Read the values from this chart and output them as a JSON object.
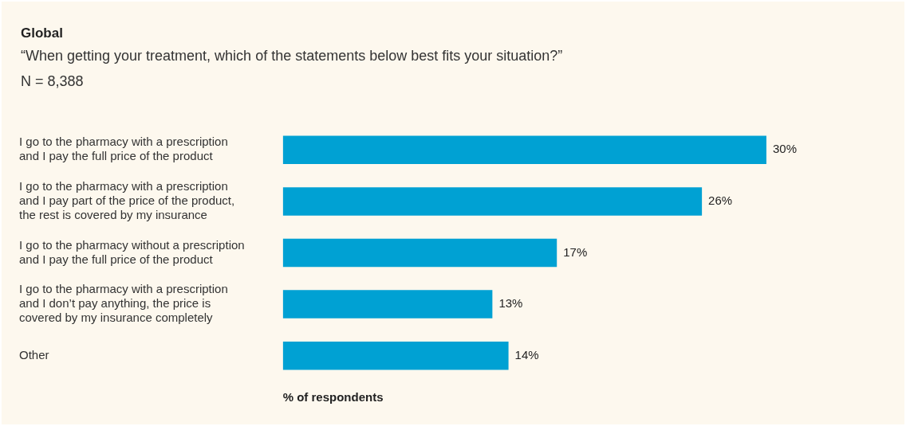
{
  "chart_data": {
    "type": "bar",
    "orientation": "horizontal",
    "title": "Global",
    "subtitle": "“When getting your treatment, which of the statements below best fits your situation?”",
    "annotations": [
      "N = 8,388"
    ],
    "xlabel": "% of respondents",
    "categories": [
      "I go to the pharmacy with a prescription and I pay the full price of the product",
      "I go to the pharmacy with a prescription and I pay part of the price of the product, the rest is covered by my insurance",
      "I go to the pharmacy without a prescription and I pay the full price of the product",
      "I go to the pharmacy with a prescription and I don’t pay anything, the price is covered by my insurance completely",
      "Other"
    ],
    "values": [
      30,
      26,
      17,
      13,
      14
    ],
    "value_labels": [
      "30%",
      "26%",
      "17%",
      "13%",
      "14%"
    ],
    "color": "#00a1d3",
    "grid": false,
    "legend": false
  }
}
